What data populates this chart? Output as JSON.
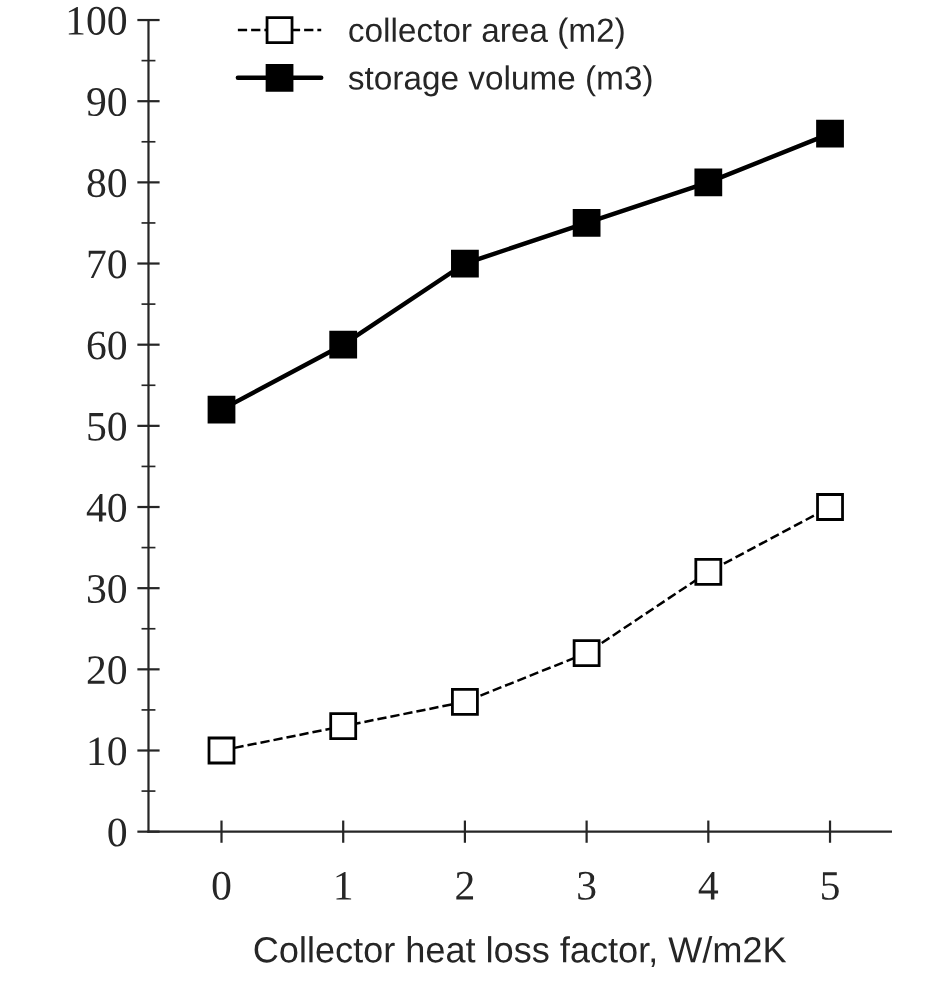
{
  "chart_data": {
    "type": "line",
    "xlabel": "Collector heat loss factor, W/m2K",
    "categories": [
      "0",
      "1",
      "2",
      "3",
      "4",
      "5"
    ],
    "series": [
      {
        "name": "collector area (m2)",
        "color": "#000000",
        "values": [
          10,
          13,
          16,
          22,
          32,
          40
        ],
        "marker": "square",
        "line_style": "dashed"
      },
      {
        "name": "storage volume (m3)",
        "color": "#000000",
        "values": [
          52,
          60,
          70,
          75,
          80,
          86
        ],
        "marker": "square",
        "line_style": "solid"
      }
    ],
    "ylim": [
      0,
      100
    ],
    "yticks": [
      0,
      10,
      20,
      30,
      40,
      50,
      60,
      70,
      80,
      90,
      100
    ],
    "grid": false,
    "legend": "top left"
  }
}
